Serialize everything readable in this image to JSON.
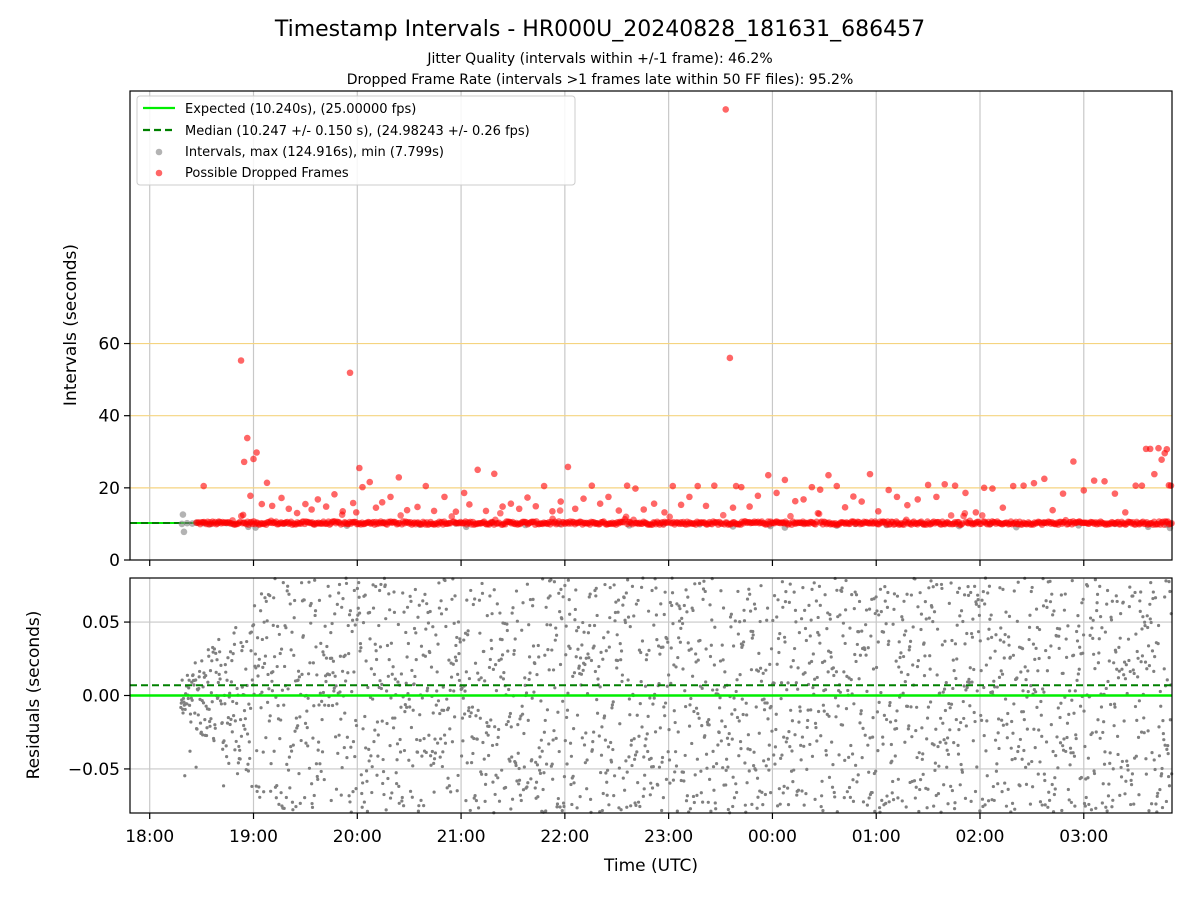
{
  "chart_data": [
    {
      "type": "scatter",
      "title": "Timestamp Intervals - HR000U_20240828_181631_686457",
      "subtitles": [
        "Jitter Quality (intervals within +/-1 frame): 46.2%",
        "Dropped Frame Rate (intervals >1 frames late within 50 FF files): 95.2%"
      ],
      "ylabel": "Intervals (seconds)",
      "xlim_hours": [
        17.81,
        27.85
      ],
      "ylim": [
        0,
        130
      ],
      "yticks": [
        0,
        20,
        40,
        60
      ],
      "ytick_labels": [
        "0",
        "20",
        "40",
        "60"
      ],
      "reference_lines": [
        20,
        40,
        60
      ],
      "reference_line_color": "#f5d480",
      "grid": "vertical",
      "legend_position": "upper-left",
      "legend": [
        {
          "label": "Expected (10.240s), (25.00000 fps)",
          "style": "solid-line",
          "color": "#00ee00"
        },
        {
          "label": "Median (10.247 +/- 0.150 s), (24.98243 +/- 0.26 fps)",
          "style": "dashed-line",
          "color": "#008000"
        },
        {
          "label": "Intervals, max (124.916s), min (7.799s)",
          "style": "marker",
          "color": "#808080"
        },
        {
          "label": "Possible Dropped Frames",
          "style": "marker",
          "color": "#ff0000"
        }
      ],
      "expected_interval": 10.24,
      "median_interval": 10.247,
      "series": [
        {
          "name": "Intervals, max (124.916s), min (7.799s)",
          "color": "#808080",
          "x_hours": [
            18.31,
            18.32,
            18.33,
            18.36,
            18.41,
            18.45,
            18.52,
            18.58,
            18.66,
            18.74,
            18.8,
            18.95,
            19.02,
            19.3,
            19.58,
            19.9,
            20.25,
            20.6,
            20.95,
            21.05,
            21.3,
            21.62,
            21.95,
            22.3,
            22.62,
            22.95,
            23.3,
            23.62,
            23.98,
            24.12,
            24.3,
            24.62,
            24.8,
            25.1,
            25.45,
            25.8,
            26.1,
            26.35,
            26.62,
            26.95,
            27.3,
            27.62,
            27.8,
            27.83
          ],
          "y": [
            10.0,
            12.6,
            7.8,
            10.2,
            10.1,
            10.3,
            10.2,
            9.9,
            10.4,
            10.2,
            10.0,
            9.2,
            9.0,
            10.1,
            10.0,
            9.5,
            10.4,
            9.8,
            10.1,
            9.2,
            10.3,
            9.7,
            10.0,
            10.2,
            9.6,
            10.1,
            9.9,
            9.3,
            9.4,
            9.0,
            10.2,
            9.5,
            10.0,
            9.7,
            10.1,
            9.4,
            10.0,
            9.1,
            10.3,
            9.6,
            10.0,
            9.2,
            9.8,
            8.9
          ]
        },
        {
          "name": "Possible Dropped Frames",
          "color": "#ff0000",
          "x_hours": [
            18.52,
            18.88,
            18.9,
            18.91,
            18.94,
            18.97,
            19.0,
            19.03,
            19.08,
            19.13,
            19.18,
            19.27,
            19.34,
            19.42,
            19.5,
            19.56,
            19.62,
            19.7,
            19.78,
            19.86,
            19.93,
            19.96,
            19.99,
            20.02,
            20.05,
            20.12,
            20.18,
            20.24,
            20.32,
            20.4,
            20.48,
            20.58,
            20.66,
            20.74,
            20.84,
            20.95,
            21.03,
            21.08,
            21.16,
            21.24,
            21.32,
            21.4,
            21.48,
            21.56,
            21.64,
            21.72,
            21.8,
            21.88,
            21.96,
            22.03,
            22.1,
            22.18,
            22.26,
            22.34,
            22.42,
            22.52,
            22.6,
            22.68,
            22.76,
            22.86,
            22.96,
            23.04,
            23.12,
            23.2,
            23.28,
            23.36,
            23.44,
            23.55,
            23.59,
            23.62,
            23.65,
            23.7,
            23.78,
            23.86,
            23.96,
            24.04,
            24.12,
            24.22,
            24.3,
            24.38,
            24.46,
            24.54,
            24.62,
            24.7,
            24.78,
            24.86,
            24.94,
            25.02,
            25.12,
            25.2,
            25.3,
            25.4,
            25.5,
            25.58,
            25.66,
            25.76,
            25.86,
            25.96,
            26.04,
            26.12,
            26.22,
            26.32,
            26.42,
            26.52,
            26.62,
            26.7,
            26.8,
            26.9,
            27.0,
            27.1,
            27.2,
            27.3,
            27.4,
            27.5,
            27.56,
            27.6,
            27.64,
            27.68,
            27.72,
            27.75,
            27.78,
            27.8,
            27.82,
            27.84
          ],
          "y": [
            20.5,
            55.3,
            12.5,
            27.2,
            33.8,
            17.8,
            28.0,
            29.8,
            15.5,
            21.4,
            15.0,
            17.2,
            14.2,
            13.0,
            15.5,
            14.0,
            16.8,
            14.8,
            18.2,
            13.5,
            51.9,
            15.8,
            13.2,
            25.5,
            20.2,
            21.6,
            14.5,
            16.0,
            17.5,
            22.9,
            13.8,
            14.7,
            20.5,
            13.6,
            17.5,
            13.4,
            18.6,
            15.4,
            25.0,
            13.6,
            23.9,
            14.8,
            15.6,
            14.2,
            17.3,
            14.9,
            20.5,
            13.5,
            16.2,
            25.8,
            14.2,
            17.0,
            20.6,
            15.6,
            17.5,
            13.7,
            20.6,
            19.8,
            14.0,
            15.6,
            13.2,
            20.5,
            15.3,
            17.5,
            20.5,
            15.0,
            20.6,
            124.9,
            56.0,
            14.5,
            20.5,
            20.2,
            14.8,
            17.8,
            23.5,
            18.6,
            22.2,
            16.3,
            16.8,
            20.2,
            19.5,
            23.5,
            20.5,
            14.6,
            17.6,
            16.2,
            23.8,
            13.5,
            19.4,
            17.5,
            15.2,
            16.8,
            20.8,
            17.5,
            21.0,
            20.6,
            18.6,
            13.2,
            20.0,
            19.8,
            14.5,
            20.5,
            20.6,
            21.3,
            22.5,
            13.8,
            18.4,
            27.3,
            19.3,
            22.0,
            21.8,
            18.4,
            13.2,
            20.6,
            20.6,
            30.8,
            30.8,
            23.8,
            31.0,
            27.8,
            29.6,
            30.7,
            20.7,
            20.6
          ]
        }
      ]
    },
    {
      "type": "scatter",
      "title": "",
      "xlabel": "Time (UTC)",
      "ylabel": "Residuals (seconds)",
      "xlim_hours": [
        17.81,
        27.85
      ],
      "ylim": [
        -0.08,
        0.08
      ],
      "yticks": [
        -0.05,
        0.0,
        0.05
      ],
      "ytick_labels": [
        "−0.05",
        "0.00",
        "0.05"
      ],
      "xticks_hours": [
        18,
        19,
        20,
        21,
        22,
        23,
        24,
        25,
        26,
        27
      ],
      "xtick_labels": [
        "18:00",
        "19:00",
        "20:00",
        "21:00",
        "22:00",
        "23:00",
        "00:00",
        "01:00",
        "02:00",
        "03:00"
      ],
      "grid": "both",
      "expected_residual": 0.0,
      "median_residual": 0.007,
      "residual_series": {
        "color": "#808080",
        "x_start_hours": 18.3,
        "x_end_hours": 27.85,
        "interval_seconds": 10.24,
        "early_spread_seconds": 0.012,
        "later_spread_seconds": 0.08
      }
    }
  ]
}
